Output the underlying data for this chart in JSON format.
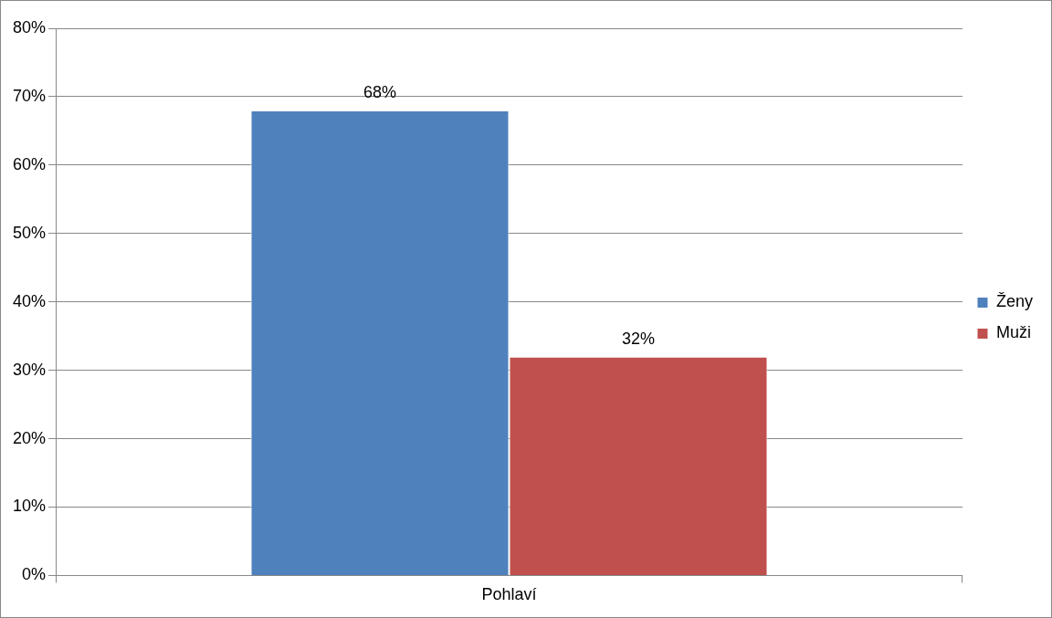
{
  "chart_data": {
    "type": "bar",
    "categories": [
      "Pohlaví"
    ],
    "series": [
      {
        "name": "Ženy",
        "color": "#4f81bd",
        "values": [
          68
        ],
        "value_labels": [
          "68%"
        ]
      },
      {
        "name": "Muži",
        "color": "#c0504d",
        "values": [
          32
        ],
        "value_labels": [
          "32%"
        ]
      }
    ],
    "ylim": [
      0,
      80
    ],
    "yticks": [
      {
        "value": 0,
        "label": "0%"
      },
      {
        "value": 10,
        "label": "10%"
      },
      {
        "value": 20,
        "label": "20%"
      },
      {
        "value": 30,
        "label": "30%"
      },
      {
        "value": 40,
        "label": "40%"
      },
      {
        "value": 50,
        "label": "50%"
      },
      {
        "value": 60,
        "label": "60%"
      },
      {
        "value": 70,
        "label": "70%"
      },
      {
        "value": 80,
        "label": "80%"
      }
    ],
    "grid": "y",
    "legend": "right"
  }
}
